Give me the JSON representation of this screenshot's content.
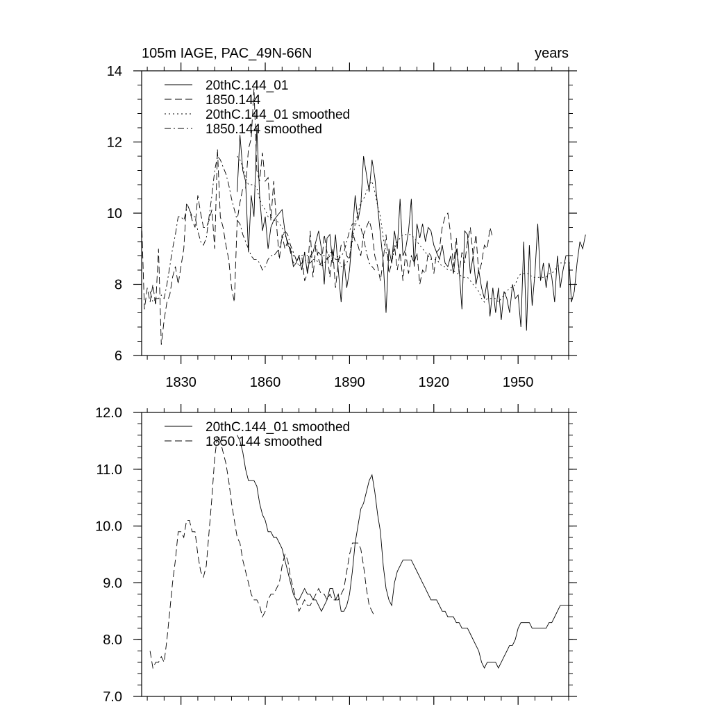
{
  "figure": {
    "title_left": "105m IAGE, PAC_49N-66N",
    "title_right": "years"
  },
  "chart_data": [
    {
      "type": "line",
      "xlim": [
        1816,
        1968
      ],
      "ylim": [
        6,
        14
      ],
      "x_ticks": [
        1830,
        1860,
        1890,
        1920,
        1950
      ],
      "y_ticks": [
        6,
        8,
        10,
        12,
        14
      ],
      "y_tick_labels": [
        "6",
        "8",
        "10",
        "12",
        "14"
      ],
      "x_tick_labels": [
        "1830",
        "1860",
        "1890",
        "1920",
        "1950"
      ],
      "grid": false,
      "legend_position": "top-left",
      "series": [
        {
          "name": "20thC.144_01",
          "dash": "solid",
          "x_start": 1850,
          "x_step": 1,
          "values": [
            10.6,
            12.2,
            11.2,
            10.9,
            8.9,
            10.5,
            9.9,
            12.4,
            10.5,
            9.5,
            9.9,
            9.0,
            9.6,
            9.8,
            9.9,
            10.0,
            10.1,
            9.5,
            9.1,
            9.0,
            8.5,
            8.6,
            8.8,
            8.4,
            8.9,
            8.3,
            8.8,
            8.9,
            9.2,
            9.5,
            9.0,
            8.0,
            9.3,
            9.4,
            8.6,
            9.4,
            8.4,
            7.5,
            8.7,
            7.9,
            8.4,
            9.4,
            10.5,
            9.8,
            10.2,
            11.6,
            11.1,
            10.6,
            11.5,
            11.0,
            10.2,
            9.4,
            8.6,
            7.2,
            9.0,
            8.6,
            9.5,
            9.0,
            10.4,
            8.8,
            9.0,
            9.5,
            10.4,
            8.5,
            9.7,
            9.3,
            9.7,
            9.2,
            9.6,
            9.5,
            9.1,
            8.9,
            8.7,
            9.1,
            8.6,
            8.5,
            8.8,
            8.3,
            9.0,
            8.4,
            7.3,
            9.5,
            9.4,
            8.3,
            8.8,
            8.0,
            8.4,
            7.9,
            7.6,
            8.1,
            7.1,
            7.9,
            7.2,
            7.9,
            7.0,
            7.8,
            7.6,
            7.2,
            8.0,
            7.6,
            7.7,
            6.8,
            9.2,
            6.7,
            9.1,
            7.4,
            8.3,
            9.7,
            8.1,
            8.6,
            7.9,
            8.6,
            8.2,
            7.5,
            8.8,
            7.9,
            8.4,
            8.8,
            8.8,
            7.5,
            7.8,
            8.6,
            9.2,
            9.0,
            9.4
          ]
        },
        {
          "name": "1850.144",
          "dash": "dashed",
          "x_start": 1816,
          "x_step": 1,
          "values": [
            9.8,
            7.3,
            7.9,
            7.5,
            8.0,
            7.4,
            9.0,
            6.3,
            7.0,
            7.5,
            7.7,
            8.2,
            8.5,
            8.0,
            8.5,
            9.0,
            10.3,
            10.1,
            9.8,
            9.6,
            10.5,
            10.0,
            9.6,
            9.6,
            9.8,
            10.1,
            9.0,
            11.8,
            9.9,
            9.6,
            9.1,
            8.7,
            7.9,
            7.5,
            9.8,
            10.3,
            10.7,
            10.7,
            11.8,
            12.1,
            13.5,
            11.2,
            10.9,
            11.7,
            10.9,
            11.0,
            9.8,
            10.9,
            9.7,
            8.7,
            9.4,
            9.0,
            9.2,
            8.9,
            8.6,
            8.6,
            8.8,
            8.8,
            8.1,
            8.3,
            9.5,
            8.2,
            9.1,
            8.7,
            8.5,
            9.4,
            8.9,
            8.2,
            9.0,
            7.9,
            8.6,
            9.1,
            9.2,
            8.8,
            8.7,
            9.5,
            9.2,
            9.1,
            8.8,
            9.4,
            9.6,
            9.8,
            9.5,
            8.8,
            8.5,
            8.1,
            8.7,
            9.4,
            8.3,
            8.6,
            9.1,
            8.4,
            8.9,
            8.1,
            8.9,
            8.3,
            8.8,
            8.6,
            8.9,
            8.0,
            8.4,
            8.3,
            8.9,
            8.8,
            8.3,
            8.9,
            9.0,
            9.6,
            9.9,
            10.0,
            9.4,
            8.5,
            9.3,
            8.3,
            8.9,
            8.6,
            9.2,
            9.6,
            8.8,
            9.4,
            8.3,
            8.6,
            9.1,
            9.0,
            9.6,
            9.3
          ]
        },
        {
          "name": "20thC.144_01 smoothed",
          "dash": "dotted",
          "x_start": 1850,
          "x_step": 1,
          "values": [
            11.6,
            11.5,
            11.3,
            11.0,
            10.8,
            10.8,
            10.8,
            10.7,
            10.4,
            10.2,
            10.1,
            9.9,
            9.9,
            9.8,
            9.8,
            9.7,
            9.6,
            9.4,
            9.2,
            9.0,
            8.8,
            8.7,
            8.7,
            8.8,
            8.9,
            8.8,
            8.8,
            8.7,
            8.7,
            8.6,
            8.5,
            8.6,
            8.7,
            8.9,
            8.9,
            8.7,
            8.8,
            8.5,
            8.5,
            8.6,
            8.8,
            9.2,
            9.7,
            10.0,
            10.3,
            10.4,
            10.6,
            10.8,
            10.9,
            10.6,
            10.2,
            9.9,
            9.3,
            8.9,
            8.7,
            8.6,
            9.0,
            9.2,
            9.3,
            9.4,
            9.4,
            9.4,
            9.4,
            9.3,
            9.2,
            9.1,
            9.0,
            8.9,
            8.8,
            8.7,
            8.7,
            8.7,
            8.6,
            8.5,
            8.5,
            8.4,
            8.4,
            8.4,
            8.3,
            8.3,
            8.2,
            8.2,
            8.2,
            8.1,
            8.0,
            7.9,
            7.8,
            7.6,
            7.5,
            7.6,
            7.6,
            7.6,
            7.6,
            7.5,
            7.6,
            7.7,
            7.8,
            7.9,
            7.9,
            8.0,
            8.2,
            8.3,
            8.3,
            8.3,
            8.3,
            8.2,
            8.2,
            8.2,
            8.2,
            8.2,
            8.2,
            8.3,
            8.3,
            8.4,
            8.5,
            8.6,
            8.6,
            8.6,
            8.6,
            8.6
          ]
        },
        {
          "name": "1850.144 smoothed",
          "dash": "dashdot",
          "x_start": 1819,
          "x_step": 1,
          "values": [
            7.8,
            7.5,
            7.6,
            7.6,
            7.7,
            7.6,
            8.0,
            8.5,
            9.0,
            9.4,
            9.9,
            9.9,
            9.8,
            10.1,
            10.1,
            9.9,
            9.9,
            9.5,
            9.2,
            9.1,
            9.3,
            9.9,
            10.5,
            11.2,
            11.6,
            11.5,
            11.3,
            11.1,
            10.8,
            10.4,
            10.1,
            9.8,
            9.7,
            9.4,
            9.2,
            9.0,
            8.8,
            8.7,
            8.7,
            8.6,
            8.4,
            8.5,
            8.7,
            8.8,
            8.8,
            8.9,
            9.0,
            9.3,
            9.5,
            9.4,
            9.1,
            8.9,
            8.7,
            8.5,
            8.6,
            8.7,
            8.6,
            8.6,
            8.7,
            8.8,
            8.9,
            8.8,
            8.8,
            8.7,
            8.8,
            8.7,
            8.7,
            8.7,
            8.8,
            8.9,
            9.2,
            9.5,
            9.7,
            9.7,
            9.7,
            9.6,
            9.3,
            8.9,
            8.6,
            8.5,
            8.4
          ]
        }
      ]
    },
    {
      "type": "line",
      "xlim": [
        1816,
        1968
      ],
      "ylim": [
        7,
        12
      ],
      "x_ticks": [
        1830,
        1860,
        1890,
        1920,
        1950
      ],
      "y_ticks": [
        7,
        8,
        9,
        10,
        11,
        12
      ],
      "y_tick_labels": [
        "7.0",
        "8.0",
        "9.0",
        "10.0",
        "11.0",
        "12.0"
      ],
      "x_tick_labels": [],
      "grid": false,
      "legend_position": "top-left",
      "series": [
        {
          "name": "20thC.144_01 smoothed",
          "dash": "solid",
          "x_start": 1850,
          "x_step": 1,
          "values": [
            11.6,
            11.5,
            11.3,
            11.0,
            10.8,
            10.8,
            10.8,
            10.7,
            10.4,
            10.2,
            10.1,
            9.9,
            9.9,
            9.8,
            9.8,
            9.7,
            9.6,
            9.4,
            9.2,
            9.0,
            8.8,
            8.7,
            8.7,
            8.8,
            8.9,
            8.8,
            8.8,
            8.7,
            8.7,
            8.6,
            8.5,
            8.6,
            8.7,
            8.9,
            8.9,
            8.7,
            8.8,
            8.5,
            8.5,
            8.6,
            8.8,
            9.2,
            9.7,
            10.0,
            10.3,
            10.4,
            10.6,
            10.8,
            10.9,
            10.6,
            10.2,
            9.9,
            9.3,
            8.9,
            8.7,
            8.6,
            9.0,
            9.2,
            9.3,
            9.4,
            9.4,
            9.4,
            9.4,
            9.3,
            9.2,
            9.1,
            9.0,
            8.9,
            8.8,
            8.7,
            8.7,
            8.7,
            8.6,
            8.5,
            8.5,
            8.4,
            8.4,
            8.4,
            8.3,
            8.3,
            8.2,
            8.2,
            8.2,
            8.1,
            8.0,
            7.9,
            7.8,
            7.6,
            7.5,
            7.6,
            7.6,
            7.6,
            7.6,
            7.5,
            7.6,
            7.7,
            7.8,
            7.9,
            7.9,
            8.0,
            8.2,
            8.3,
            8.3,
            8.3,
            8.3,
            8.2,
            8.2,
            8.2,
            8.2,
            8.2,
            8.2,
            8.3,
            8.3,
            8.4,
            8.5,
            8.6,
            8.6,
            8.6,
            8.6,
            8.6
          ]
        },
        {
          "name": "1850.144 smoothed",
          "dash": "dashed",
          "x_start": 1819,
          "x_step": 1,
          "values": [
            7.8,
            7.5,
            7.6,
            7.6,
            7.7,
            7.6,
            8.0,
            8.5,
            9.0,
            9.4,
            9.9,
            9.9,
            9.8,
            10.1,
            10.1,
            9.9,
            9.9,
            9.5,
            9.2,
            9.1,
            9.3,
            9.9,
            10.5,
            11.2,
            11.6,
            11.5,
            11.3,
            11.1,
            10.8,
            10.4,
            10.1,
            9.8,
            9.7,
            9.4,
            9.2,
            9.0,
            8.8,
            8.7,
            8.7,
            8.6,
            8.4,
            8.5,
            8.7,
            8.8,
            8.8,
            8.9,
            9.0,
            9.3,
            9.5,
            9.4,
            9.1,
            8.9,
            8.7,
            8.5,
            8.6,
            8.7,
            8.6,
            8.6,
            8.7,
            8.8,
            8.9,
            8.8,
            8.8,
            8.7,
            8.8,
            8.7,
            8.7,
            8.7,
            8.8,
            8.9,
            9.2,
            9.5,
            9.7,
            9.7,
            9.7,
            9.6,
            9.3,
            8.9,
            8.6,
            8.5,
            8.4
          ]
        }
      ]
    }
  ]
}
